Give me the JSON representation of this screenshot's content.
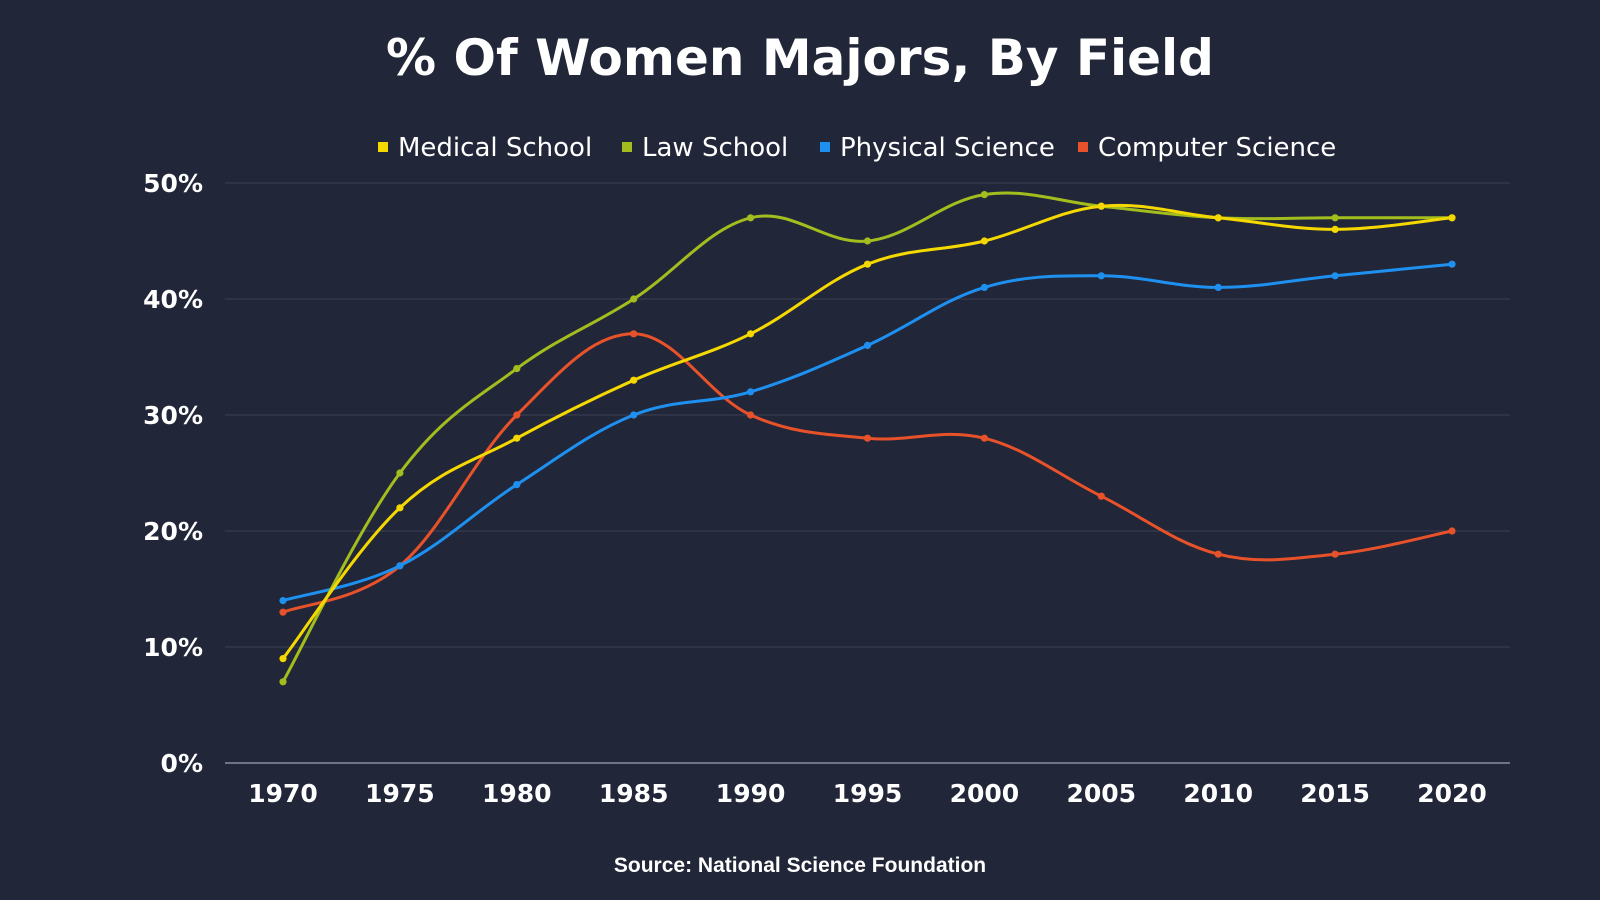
{
  "chart_data": {
    "type": "line",
    "title": "% Of Women Majors, By Field",
    "source": "Source: National Science Foundation",
    "x": [
      "1970",
      "1975",
      "1980",
      "1985",
      "1990",
      "1995",
      "2000",
      "2005",
      "2010",
      "2015",
      "2020"
    ],
    "y_ticks": [
      "0%",
      "10%",
      "20%",
      "30%",
      "40%",
      "50%"
    ],
    "ylim": [
      0,
      50
    ],
    "grid": true,
    "legend_position": "top",
    "series": [
      {
        "name": "Medical School",
        "color": "#f5d800",
        "values": [
          9,
          22,
          28,
          33,
          37,
          43,
          45,
          48,
          47,
          46,
          47
        ]
      },
      {
        "name": "Law School",
        "color": "#a2bd1d",
        "values": [
          7,
          25,
          34,
          40,
          47,
          45,
          49,
          48,
          47,
          47,
          47
        ]
      },
      {
        "name": "Physical Science",
        "color": "#1e90f0",
        "values": [
          14,
          17,
          24,
          30,
          32,
          36,
          41,
          42,
          41,
          42,
          43
        ]
      },
      {
        "name": "Computer Science",
        "color": "#e8522a",
        "values": [
          13,
          17,
          30,
          37,
          30,
          28,
          28,
          23,
          18,
          18,
          20
        ]
      }
    ]
  }
}
